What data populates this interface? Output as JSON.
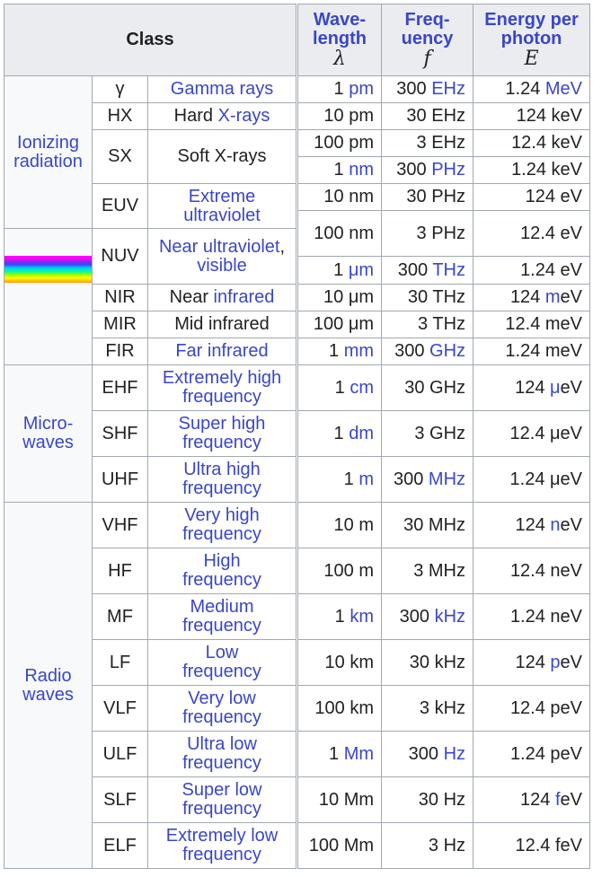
{
  "header": {
    "class": "Class",
    "wavelength": {
      "label": "Wave-\nlength",
      "symbol": "λ"
    },
    "frequency": {
      "label": "Freq-\nuency",
      "symbol": "f"
    },
    "energy": {
      "label": "Energy per\nphoton",
      "symbol": "E"
    }
  },
  "groups": [
    [
      {
        "link": "Ionizing\nradiation"
      }
    ],
    [
      {
        "link": "Micro-\nwaves"
      }
    ],
    [
      {
        "link": "Radio\nwaves"
      }
    ]
  ],
  "rows": [
    {
      "abbr": "γ",
      "name": [
        {
          "link": "Gamma rays"
        }
      ],
      "wavelength": [
        "1 ",
        {
          "link": "pm"
        }
      ],
      "frequency": [
        "300 ",
        {
          "link": "EHz"
        }
      ],
      "energy": [
        "1.24 ",
        {
          "link": "MeV"
        }
      ]
    },
    {
      "abbr": "HX",
      "name": [
        "Hard ",
        {
          "link": "X-rays"
        }
      ],
      "wavelength": "10 pm",
      "frequency": "30 EHz",
      "energy": "124 keV"
    },
    {
      "abbr": "SX",
      "name": "Soft X-rays",
      "wavelength": "100 pm",
      "frequency": "3 EHz",
      "energy": "12.4 keV"
    },
    {
      "wavelength": [
        "1 ",
        {
          "link": "nm"
        }
      ],
      "frequency": [
        "300 ",
        {
          "link": "PHz"
        }
      ],
      "energy": "1.24 keV"
    },
    {
      "abbr": "EUV",
      "name": [
        {
          "link": "Extreme\nultraviolet"
        }
      ],
      "wavelength": "10 nm",
      "frequency": "30 PHz",
      "energy": "124 eV"
    },
    {
      "wavelength": "100 nm",
      "frequency": "3 PHz",
      "energy": "12.4 eV"
    },
    {
      "abbr": "NUV",
      "name": [
        {
          "link": "Near ultraviolet"
        },
        ",\n",
        {
          "link": "visible"
        }
      ]
    },
    {
      "wavelength": [
        "1 ",
        {
          "link": "μm"
        }
      ],
      "frequency": [
        "300 ",
        {
          "link": "THz"
        }
      ],
      "energy": "1.24 eV"
    },
    {
      "abbr": "NIR",
      "name": [
        "Near ",
        {
          "link": "infrared"
        }
      ],
      "wavelength": "10 μm",
      "frequency": "30 THz",
      "energy": [
        "124 ",
        {
          "link": "m"
        },
        "eV"
      ]
    },
    {
      "abbr": "MIR",
      "name": "Mid infrared",
      "wavelength": "100 μm",
      "frequency": "3 THz",
      "energy": "12.4 meV"
    },
    {
      "abbr": "FIR",
      "name": [
        {
          "link": "Far infrared"
        }
      ],
      "wavelength": [
        "1 ",
        {
          "link": "mm"
        }
      ],
      "frequency": [
        "300 ",
        {
          "link": "GHz"
        }
      ],
      "energy": "1.24 meV"
    },
    {
      "abbr": "EHF",
      "name": [
        {
          "link": "Extremely high\nfrequency"
        }
      ],
      "wavelength": [
        "1 ",
        {
          "link": "cm"
        }
      ],
      "frequency": "30 GHz",
      "energy": [
        "124 ",
        {
          "link": "μ"
        },
        "eV"
      ]
    },
    {
      "abbr": "SHF",
      "name": [
        {
          "link": "Super high\nfrequency"
        }
      ],
      "wavelength": [
        "1 ",
        {
          "link": "dm"
        }
      ],
      "frequency": "3 GHz",
      "energy": "12.4 μeV"
    },
    {
      "abbr": "UHF",
      "name": [
        {
          "link": "Ultra high\nfrequency"
        }
      ],
      "wavelength": [
        "1 ",
        {
          "link": "m"
        }
      ],
      "frequency": [
        "300 ",
        {
          "link": "MHz"
        }
      ],
      "energy": "1.24 μeV"
    },
    {
      "abbr": "VHF",
      "name": [
        {
          "link": "Very high\nfrequency"
        }
      ],
      "wavelength": "10 m",
      "frequency": "30 MHz",
      "energy": [
        "124 ",
        {
          "link": "n"
        },
        "eV"
      ]
    },
    {
      "abbr": "HF",
      "name": [
        {
          "link": "High\nfrequency"
        }
      ],
      "wavelength": "100 m",
      "frequency": "3 MHz",
      "energy": "12.4 neV"
    },
    {
      "abbr": "MF",
      "name": [
        {
          "link": "Medium\nfrequency"
        }
      ],
      "wavelength": [
        "1 ",
        {
          "link": "km"
        }
      ],
      "frequency": [
        "300 ",
        {
          "link": "kHz"
        }
      ],
      "energy": "1.24 neV"
    },
    {
      "abbr": "LF",
      "name": [
        {
          "link": "Low\nfrequency"
        }
      ],
      "wavelength": "10 km",
      "frequency": "30 kHz",
      "energy": [
        "124 ",
        {
          "link": "p"
        },
        "eV"
      ]
    },
    {
      "abbr": "VLF",
      "name": [
        {
          "link": "Very low\nfrequency"
        }
      ],
      "wavelength": "100 km",
      "frequency": "3 kHz",
      "energy": "12.4 peV"
    },
    {
      "abbr": "ULF",
      "name": [
        {
          "link": "Ultra low\nfrequency"
        }
      ],
      "wavelength": [
        "1 ",
        {
          "link": "Mm"
        }
      ],
      "frequency": [
        "300 ",
        {
          "link": "Hz"
        }
      ],
      "energy": "1.24 peV"
    },
    {
      "abbr": "SLF",
      "name": [
        {
          "link": "Super low\nfrequency"
        }
      ],
      "wavelength": "10 Mm",
      "frequency": "30 Hz",
      "energy": [
        "124 ",
        {
          "link": "f"
        },
        "eV"
      ]
    },
    {
      "abbr": "ELF",
      "name": [
        {
          "link": "Extremely low\nfrequency"
        }
      ],
      "wavelength": "100 Mm",
      "frequency": "3 Hz",
      "energy": "12.4 feV"
    }
  ]
}
